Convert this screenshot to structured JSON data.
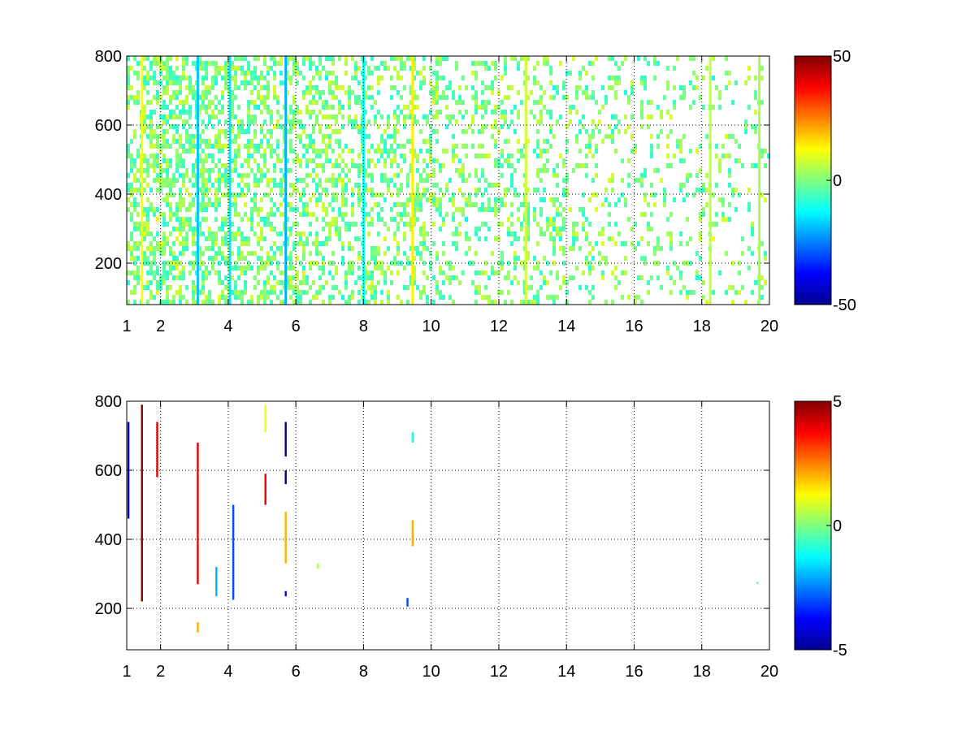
{
  "chart_data": [
    {
      "type": "heatmap",
      "title": "",
      "xlabel": "",
      "ylabel": "",
      "xlim": [
        1,
        20
      ],
      "ylim": [
        80,
        800
      ],
      "x_ticks": [
        1,
        2,
        4,
        6,
        8,
        10,
        12,
        14,
        16,
        18,
        20
      ],
      "x_tick_labels": [
        "1",
        "2",
        "4",
        "6",
        "8",
        "10",
        "12",
        "14",
        "16",
        "18",
        "20"
      ],
      "y_ticks": [
        200,
        400,
        600,
        800
      ],
      "y_tick_labels": [
        "200",
        "400",
        "600",
        "800"
      ],
      "grid": true,
      "colormap": "jet",
      "colorbar": {
        "range": [
          -50,
          50
        ],
        "ticks": [
          -50,
          0,
          50
        ],
        "tick_labels": [
          "-50",
          "0",
          "50"
        ]
      },
      "cells": {
        "coverage": "dense, speckled values across the whole x-range; sparser toward high x",
        "typical_values": [
          -10,
          10
        ],
        "strong_columns": [
          {
            "x": 1.45,
            "value": 12
          },
          {
            "x": 3.1,
            "value": -18
          },
          {
            "x": 4.05,
            "value": -15
          },
          {
            "x": 5.7,
            "value": -20
          },
          {
            "x": 8.0,
            "value": -12
          },
          {
            "x": 9.45,
            "value": 14
          },
          {
            "x": 12.8,
            "value": 8
          },
          {
            "x": 18.25,
            "value": 6
          },
          {
            "x": 19.7,
            "value": 4
          }
        ]
      }
    },
    {
      "type": "heatmap",
      "title": "",
      "xlabel": "",
      "ylabel": "",
      "xlim": [
        1,
        20
      ],
      "ylim": [
        80,
        800
      ],
      "x_ticks": [
        1,
        2,
        4,
        6,
        8,
        10,
        12,
        14,
        16,
        18,
        20
      ],
      "x_tick_labels": [
        "1",
        "2",
        "4",
        "6",
        "8",
        "10",
        "12",
        "14",
        "16",
        "18",
        "20"
      ],
      "y_ticks": [
        200,
        400,
        600,
        800
      ],
      "y_tick_labels": [
        "200",
        "400",
        "600",
        "800"
      ],
      "grid": true,
      "colormap": "jet",
      "colorbar": {
        "range": [
          -5,
          5
        ],
        "ticks": [
          -5,
          0,
          5
        ],
        "tick_labels": [
          "-5",
          "0",
          "5"
        ]
      },
      "segments": [
        {
          "x": 1.05,
          "y0": 460,
          "y1": 740,
          "value": -4
        },
        {
          "x": 1.45,
          "y0": 220,
          "y1": 790,
          "value": 5
        },
        {
          "x": 1.9,
          "y0": 580,
          "y1": 740,
          "value": 4
        },
        {
          "x": 3.1,
          "y0": 270,
          "y1": 680,
          "value": 4
        },
        {
          "x": 3.1,
          "y0": 130,
          "y1": 160,
          "value": 2
        },
        {
          "x": 3.65,
          "y0": 235,
          "y1": 320,
          "value": -2
        },
        {
          "x": 4.15,
          "y0": 225,
          "y1": 500,
          "value": -3
        },
        {
          "x": 5.1,
          "y0": 500,
          "y1": 590,
          "value": 4
        },
        {
          "x": 5.1,
          "y0": 710,
          "y1": 790,
          "value": 1
        },
        {
          "x": 5.7,
          "y0": 640,
          "y1": 740,
          "value": -5
        },
        {
          "x": 5.7,
          "y0": 560,
          "y1": 600,
          "value": -5
        },
        {
          "x": 5.7,
          "y0": 330,
          "y1": 480,
          "value": 2
        },
        {
          "x": 5.7,
          "y0": 235,
          "y1": 250,
          "value": -4
        },
        {
          "x": 9.45,
          "y0": 380,
          "y1": 455,
          "value": 2
        },
        {
          "x": 9.45,
          "y0": 680,
          "y1": 710,
          "value": -1
        },
        {
          "x": 9.3,
          "y0": 205,
          "y1": 230,
          "value": -3
        },
        {
          "x": 6.65,
          "y0": 315,
          "y1": 330,
          "value": 0.5
        },
        {
          "x": 19.65,
          "y0": 272,
          "y1": 276,
          "value": -1
        }
      ]
    }
  ]
}
